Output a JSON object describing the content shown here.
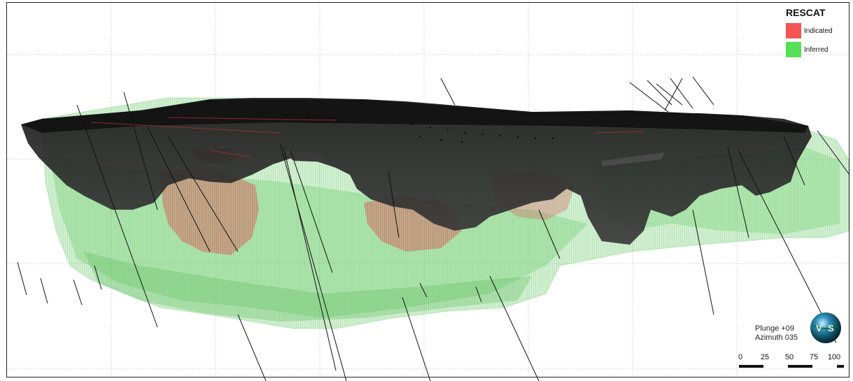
{
  "legend": {
    "title": "RESCAT",
    "items": [
      {
        "label": "Indicated",
        "color": "#f45555"
      },
      {
        "label": "Inferred",
        "color": "#55e055"
      }
    ]
  },
  "view": {
    "plunge": "Plunge +09",
    "azimuth": "Azimuth 035"
  },
  "scale": {
    "ticks": [
      "0",
      "25",
      "50",
      "75",
      "100"
    ]
  },
  "compass": {
    "letters": [
      "V",
      "S"
    ]
  }
}
